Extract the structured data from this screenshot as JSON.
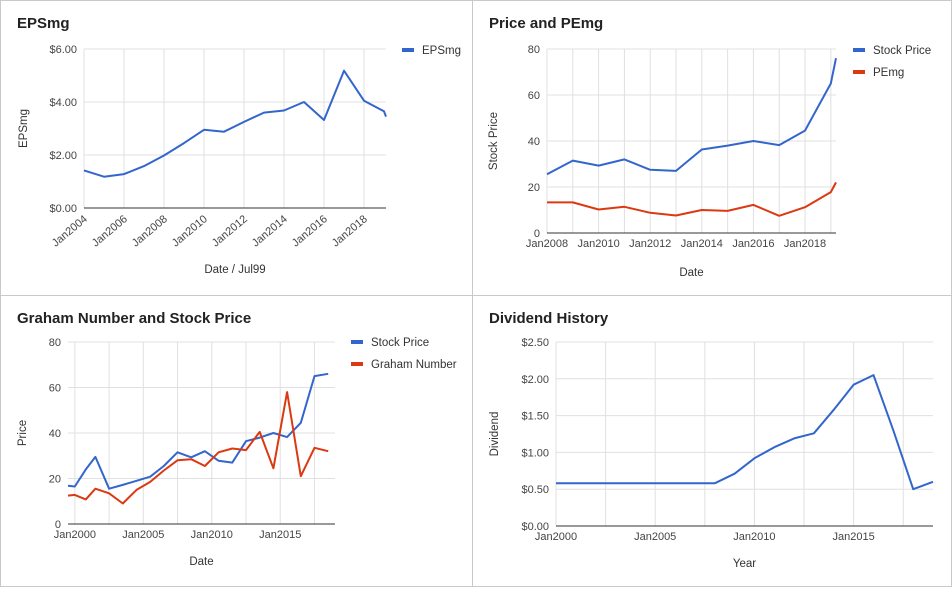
{
  "chart_data": [
    {
      "type": "line",
      "title": "EPSmg",
      "xlabel": "Date / Jul99",
      "ylabel": "EPSmg",
      "x_ticks": [
        "Jan2004",
        "Jan2006",
        "Jan2008",
        "Jan2010",
        "Jan2012",
        "Jan2014",
        "Jan2016",
        "Jan2018"
      ],
      "y_ticks": [
        "$0.00",
        "$2.00",
        "$4.00",
        "$6.00"
      ],
      "xlim": [
        2004,
        2019.1
      ],
      "ylim": [
        0,
        6
      ],
      "legend": "right",
      "series": [
        {
          "name": "EPSmg",
          "color": "#3366cc",
          "x": [
            2004,
            2005,
            2006,
            2007,
            2008,
            2009,
            2010,
            2011,
            2012,
            2013,
            2014,
            2015,
            2016,
            2017,
            2018,
            2019,
            2019.1
          ],
          "values": [
            1.42,
            1.18,
            1.28,
            1.58,
            1.98,
            2.45,
            2.95,
            2.88,
            3.25,
            3.6,
            3.68,
            4.0,
            3.32,
            5.18,
            4.05,
            3.65,
            3.45
          ]
        }
      ]
    },
    {
      "type": "line",
      "title": "Price and PEmg",
      "xlabel": "Date",
      "ylabel": "Stock Price",
      "x_ticks": [
        "Jan2008",
        "Jan2010",
        "Jan2012",
        "Jan2014",
        "Jan2016",
        "Jan2018"
      ],
      "y_ticks": [
        "0",
        "20",
        "40",
        "60",
        "80"
      ],
      "xlim": [
        2008,
        2019.2
      ],
      "ylim": [
        0,
        80
      ],
      "legend": "right",
      "series": [
        {
          "name": "Stock Price",
          "color": "#3366cc",
          "x": [
            2008,
            2009,
            2010,
            2011,
            2012,
            2013,
            2014,
            2015,
            2016,
            2017,
            2018,
            2019,
            2019.2
          ],
          "values": [
            25.5,
            31.5,
            29.3,
            32,
            27.5,
            27,
            36.3,
            38,
            40,
            38.2,
            44.5,
            65,
            76
          ]
        },
        {
          "name": "PEmg",
          "color": "#dc3912",
          "x": [
            2008,
            2009,
            2010,
            2011,
            2012,
            2013,
            2014,
            2015,
            2016,
            2017,
            2018,
            2019,
            2019.2
          ],
          "values": [
            13.3,
            13.3,
            10.2,
            11.4,
            8.8,
            7.6,
            10,
            9.6,
            12.2,
            7.5,
            11.2,
            17.8,
            22
          ]
        }
      ]
    },
    {
      "type": "line",
      "title": "Graham Number and Stock Price",
      "xlabel": "Date",
      "ylabel": "Price",
      "x_ticks": [
        "Jan2000",
        "Jan2005",
        "Jan2010",
        "Jan2015"
      ],
      "y_ticks": [
        "0",
        "20",
        "40",
        "60",
        "80"
      ],
      "xlim": [
        1999.5,
        2019
      ],
      "ylim": [
        0,
        80
      ],
      "legend": "right",
      "series": [
        {
          "name": "Stock Price",
          "color": "#3366cc",
          "x": [
            1999.5,
            2000,
            2000.8,
            2001.5,
            2002.5,
            2003.5,
            2004.5,
            2005.5,
            2006.5,
            2007.5,
            2008.5,
            2009.5,
            2010.5,
            2011.5,
            2012.5,
            2013.5,
            2014.5,
            2015.5,
            2016.5,
            2017.5,
            2018.5
          ],
          "values": [
            16.8,
            16.5,
            24,
            29.5,
            15.5,
            17.2,
            19,
            20.8,
            25.5,
            31.5,
            29.3,
            32,
            27.8,
            27,
            36.4,
            38,
            40,
            38.2,
            44.5,
            65,
            66
          ]
        },
        {
          "name": "Graham Number",
          "color": "#dc3912",
          "x": [
            1999.5,
            2000,
            2000.8,
            2001.5,
            2002.5,
            2003.5,
            2004.5,
            2005.5,
            2006.5,
            2007.5,
            2008.5,
            2009.5,
            2010.5,
            2011.5,
            2012.5,
            2013.5,
            2014.5,
            2015.5,
            2016.5,
            2017.5,
            2018.5
          ],
          "values": [
            12.5,
            12.8,
            10.8,
            15.5,
            13.5,
            9,
            15,
            18.5,
            23.5,
            28,
            28.5,
            25.5,
            31.5,
            33.2,
            32.5,
            40.5,
            24.5,
            58,
            21,
            33.5,
            32
          ]
        }
      ]
    },
    {
      "type": "line",
      "title": "Dividend History",
      "xlabel": "Year",
      "ylabel": "Dividend",
      "x_ticks": [
        "Jan2000",
        "Jan2005",
        "Jan2010",
        "Jan2015"
      ],
      "y_ticks": [
        "$0.00",
        "$0.50",
        "$1.00",
        "$1.50",
        "$2.00",
        "$2.50"
      ],
      "xlim": [
        2000,
        2019
      ],
      "ylim": [
        0,
        2.5
      ],
      "legend": "none",
      "series": [
        {
          "name": "",
          "color": "#3366cc",
          "x": [
            2000,
            2001,
            2002,
            2003,
            2004,
            2005,
            2006,
            2007,
            2008,
            2009,
            2010,
            2011,
            2012,
            2013,
            2014,
            2015,
            2016,
            2017,
            2018,
            2019
          ],
          "values": [
            0.58,
            0.58,
            0.58,
            0.58,
            0.58,
            0.58,
            0.58,
            0.58,
            0.58,
            0.71,
            0.92,
            1.07,
            1.19,
            1.26,
            1.58,
            1.92,
            2.05,
            1.3,
            0.5,
            0.6
          ]
        }
      ]
    }
  ]
}
